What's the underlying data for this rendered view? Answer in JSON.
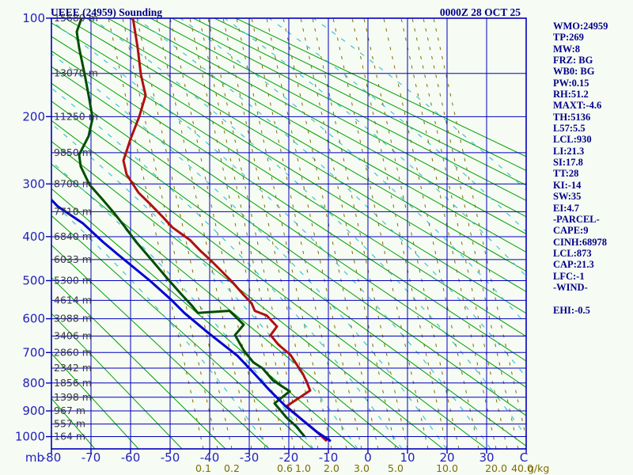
{
  "header": {
    "title": "UEEE (24959) Sounding",
    "datetime": "0000Z 28 OCT 25"
  },
  "info_panel": {
    "lines": [
      "WMO:24959",
      "TP:269",
      "MW:8",
      "FRZ: BG",
      "WB0: BG",
      "PW:0.15",
      "RH:51.2",
      "MAXT:-4.6",
      "TH:5136",
      "L57:5.5",
      "LCL:930",
      "LI:21.3",
      "SI:17.8",
      "TT:28",
      "KI:-14",
      "SW:35",
      "EI:4.7",
      "-PARCEL-",
      "CAPE:9",
      "CINH:68978",
      "LCL:873",
      "CAP:21.3",
      "LFC:-1",
      "-WIND-",
      "",
      "EHI:-0.5"
    ]
  },
  "colors": {
    "background": "#f6fbf4",
    "grid": "#0000bb",
    "axis_text": "#2222bb",
    "header_text": "#000088",
    "altitude_text": "#3a3a3a",
    "dry_adiabat": "#00a000",
    "moist_adiabat": "#3cc4d4",
    "mixing_ratio": "#7d6d00",
    "temperature_curve": "#b01010",
    "dewpoint_curve": "#004d00",
    "parcel_curve": "#0000d0"
  },
  "chart_data": {
    "type": "line",
    "subtype": "stuve-sounding",
    "title": "UEEE (24959) Sounding",
    "datetime": "0000Z 28 OCT 25",
    "x_axis": {
      "unit": "C",
      "ticks": [
        -80,
        -70,
        -60,
        -50,
        -40,
        -30,
        -20,
        -10,
        0,
        10,
        20,
        30
      ],
      "range": [
        -80,
        40
      ]
    },
    "y_axis": {
      "unit": "mb",
      "ticks": [
        100,
        200,
        300,
        400,
        500,
        600,
        700,
        800,
        900,
        1000
      ],
      "range": [
        100,
        1050
      ],
      "scale": "pressure^0.2859",
      "minor_step_mb": 50
    },
    "pressure_levels": [
      {
        "p": 100,
        "alt": "15680 m"
      },
      {
        "p": 150,
        "alt": "13070 m"
      },
      {
        "p": 200,
        "alt": "11250 m"
      },
      {
        "p": 250,
        "alt": "9850 m"
      },
      {
        "p": 300,
        "alt": "8700 m"
      },
      {
        "p": 350,
        "alt": "7710 m"
      },
      {
        "p": 400,
        "alt": "6840 m"
      },
      {
        "p": 450,
        "alt": "6033 m"
      },
      {
        "p": 500,
        "alt": "5300 m"
      },
      {
        "p": 550,
        "alt": "4614 m"
      },
      {
        "p": 600,
        "alt": "3988 m"
      },
      {
        "p": 650,
        "alt": "3406 m"
      },
      {
        "p": 700,
        "alt": "2860 m"
      },
      {
        "p": 750,
        "alt": "2342 m"
      },
      {
        "p": 800,
        "alt": "1856 m"
      },
      {
        "p": 850,
        "alt": "1398 m"
      },
      {
        "p": 900,
        "alt": "967 m"
      },
      {
        "p": 950,
        "alt": "557 m"
      },
      {
        "p": 1000,
        "alt": "164 m"
      }
    ],
    "mixing_ratio": {
      "unit": "g/kg",
      "labels": [
        {
          "v": "0.1",
          "t": -41.6
        },
        {
          "v": "0.2",
          "t": -34.4
        },
        {
          "v": "0.6",
          "t": -21.0
        },
        {
          "v": "1.0",
          "t": -16.4
        },
        {
          "v": "2.0",
          "t": -9.2
        },
        {
          "v": "3.0",
          "t": -1.6
        },
        {
          "v": "5.0",
          "t": 7.0
        },
        {
          "v": "10.0",
          "t": 20.0
        },
        {
          "v": "20.0",
          "t": 32.4
        },
        {
          "v": "40.0",
          "t": 39.0
        }
      ],
      "line_anchors_c": [
        -41.6,
        -38,
        -34.4,
        -29.4,
        -26,
        -21,
        -18.6,
        -16.4,
        -12.6,
        -9.2,
        -5.4,
        -1.6,
        2.6,
        7,
        10,
        15.2,
        20,
        23,
        28,
        32.4,
        35.2,
        38,
        40.6
      ]
    },
    "series": [
      {
        "name": "temperature",
        "color": "#b01010",
        "points": [
          [
            -59.4,
            100
          ],
          [
            -58.2,
            125
          ],
          [
            -57.4,
            151
          ],
          [
            -56.2,
            174
          ],
          [
            -57.8,
            200
          ],
          [
            -60,
            230
          ],
          [
            -61.8,
            262
          ],
          [
            -61,
            284
          ],
          [
            -58,
            315
          ],
          [
            -55,
            336
          ],
          [
            -52,
            359
          ],
          [
            -49.4,
            381
          ],
          [
            -45,
            407
          ],
          [
            -42.4,
            430
          ],
          [
            -39.6,
            453
          ],
          [
            -36.8,
            479
          ],
          [
            -34.2,
            504
          ],
          [
            -31.4,
            536
          ],
          [
            -29.4,
            558
          ],
          [
            -28.6,
            578
          ],
          [
            -25.6,
            591
          ],
          [
            -23,
            622
          ],
          [
            -24.6,
            647
          ],
          [
            -22.6,
            676
          ],
          [
            -19.6,
            707
          ],
          [
            -18,
            738
          ],
          [
            -16.4,
            770
          ],
          [
            -15.4,
            799
          ],
          [
            -14.6,
            826
          ],
          [
            -20.6,
            883
          ],
          [
            -16.6,
            934
          ],
          [
            -13,
            980
          ],
          [
            -10.4,
            1018
          ]
        ]
      },
      {
        "name": "dewpoint",
        "color": "#004d00",
        "points": [
          [
            -72.4,
            100
          ],
          [
            -73.6,
            111
          ],
          [
            -73,
            125
          ],
          [
            -71.6,
            151
          ],
          [
            -70.6,
            174
          ],
          [
            -69.6,
            202
          ],
          [
            -70.6,
            226
          ],
          [
            -73,
            253
          ],
          [
            -72.6,
            271
          ],
          [
            -70.4,
            301
          ],
          [
            -67,
            328
          ],
          [
            -64,
            354
          ],
          [
            -61.6,
            378
          ],
          [
            -58.6,
            411
          ],
          [
            -56,
            437
          ],
          [
            -53,
            469
          ],
          [
            -50.6,
            496
          ],
          [
            -47,
            536
          ],
          [
            -44.6,
            563
          ],
          [
            -43,
            584
          ],
          [
            -35,
            578
          ],
          [
            -31.4,
            617
          ],
          [
            -33.6,
            647
          ],
          [
            -31.4,
            693
          ],
          [
            -29,
            731
          ],
          [
            -26.6,
            751
          ],
          [
            -24,
            791
          ],
          [
            -19.8,
            829
          ],
          [
            -23.6,
            872
          ],
          [
            -20.6,
            925
          ],
          [
            -18.2,
            958
          ],
          [
            -16,
            1000
          ]
        ]
      },
      {
        "name": "parcel",
        "color": "#0000d0",
        "points": [
          [
            -80,
            328
          ],
          [
            -78.4,
            340
          ],
          [
            -72,
            373
          ],
          [
            -67,
            411
          ],
          [
            -63.4,
            437
          ],
          [
            -55,
            501
          ],
          [
            -49.6,
            550
          ],
          [
            -46.4,
            584
          ],
          [
            -40.4,
            640
          ],
          [
            -33,
            710
          ],
          [
            -29,
            764
          ],
          [
            -25,
            823
          ],
          [
            -20.8,
            883
          ],
          [
            -16.6,
            934
          ],
          [
            -13,
            980
          ],
          [
            -9.4,
            1018
          ]
        ]
      }
    ]
  }
}
